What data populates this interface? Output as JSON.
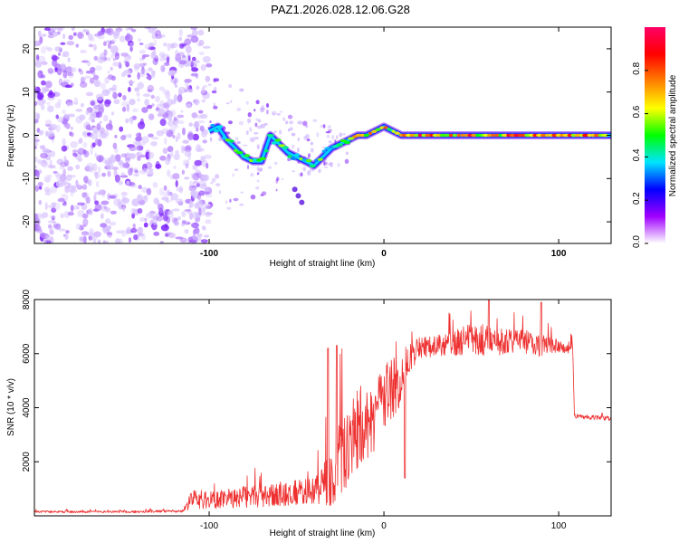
{
  "title": "PAZ1.2026.028.12.06.G28",
  "chart_data": [
    {
      "type": "heatmap",
      "xlabel": "Height of straight line (km)",
      "ylabel": "Frequency (Hz)",
      "xlim": [
        -200,
        130
      ],
      "ylim": [
        -25,
        25
      ],
      "x_ticks": [
        -100,
        0,
        100
      ],
      "y_ticks": [
        -20,
        -10,
        0,
        10,
        20
      ],
      "colorbar": {
        "label": "Normalized spectral amplitude",
        "range": [
          0,
          1
        ],
        "ticks": [
          "0.0",
          "0.2",
          "0.4",
          "0.6",
          "0.8"
        ],
        "tick_values": [
          0,
          0.2,
          0.4,
          0.6,
          0.8
        ],
        "colors": [
          "#ffffff",
          "#a000ff",
          "#0000ff",
          "#00e5ff",
          "#00ff00",
          "#ffff00",
          "#ff8000",
          "#ff0000",
          "#ff0066"
        ]
      },
      "ridge": {
        "x": [
          -100,
          -95,
          -90,
          -85,
          -80,
          -75,
          -70,
          -65,
          -60,
          -55,
          -50,
          -45,
          -40,
          -35,
          -30,
          -25,
          -20,
          -15,
          -10,
          -5,
          0,
          10,
          20,
          40,
          60,
          80,
          100,
          130
        ],
        "y": [
          1,
          2,
          -1,
          -3,
          -5,
          -6,
          -6,
          0,
          -2,
          -4,
          -5,
          -6,
          -7,
          -5,
          -3,
          -2,
          -1,
          0,
          0,
          1,
          2,
          0,
          0,
          0,
          0,
          0,
          0,
          0
        ]
      }
    },
    {
      "type": "line",
      "xlabel": "Height of straight line (km)",
      "ylabel": "SNR (10 * v/v)",
      "xlim": [
        -200,
        130
      ],
      "ylim": [
        0,
        8000
      ],
      "x_ticks": [
        -100,
        0,
        100
      ],
      "y_ticks": [
        2000,
        4000,
        6000,
        8000
      ],
      "series": [
        {
          "name": "SNR",
          "color": "#ee3030",
          "envelope_x": [
            -200,
            -150,
            -115,
            -110,
            -100,
            -80,
            -60,
            -40,
            -35,
            -30,
            -25,
            -22,
            -20,
            -15,
            -10,
            -5,
            0,
            5,
            8,
            10,
            15,
            20,
            30,
            40,
            50,
            60,
            70,
            80,
            90,
            100,
            108,
            109,
            115,
            130
          ],
          "envelope_mean": [
            150,
            150,
            180,
            600,
            600,
            700,
            800,
            900,
            1200,
            1500,
            2200,
            3000,
            2800,
            3200,
            3500,
            3800,
            4200,
            4800,
            4600,
            5200,
            5800,
            6200,
            6300,
            6400,
            6500,
            6500,
            6400,
            6400,
            6300,
            6300,
            6200,
            3700,
            3650,
            3600
          ],
          "envelope_noise": [
            40,
            40,
            50,
            350,
            350,
            400,
            450,
            500,
            800,
            1200,
            1800,
            2000,
            1500,
            1500,
            1500,
            1400,
            1300,
            1200,
            1000,
            900,
            600,
            400,
            400,
            500,
            600,
            600,
            500,
            500,
            400,
            250,
            200,
            80,
            80,
            80
          ],
          "peaks": [
            {
              "x": -32,
              "y": 6200
            },
            {
              "x": -27,
              "y": 6300
            },
            {
              "x": 60,
              "y": 8000
            },
            {
              "x": 90,
              "y": 7900
            }
          ]
        }
      ]
    }
  ]
}
